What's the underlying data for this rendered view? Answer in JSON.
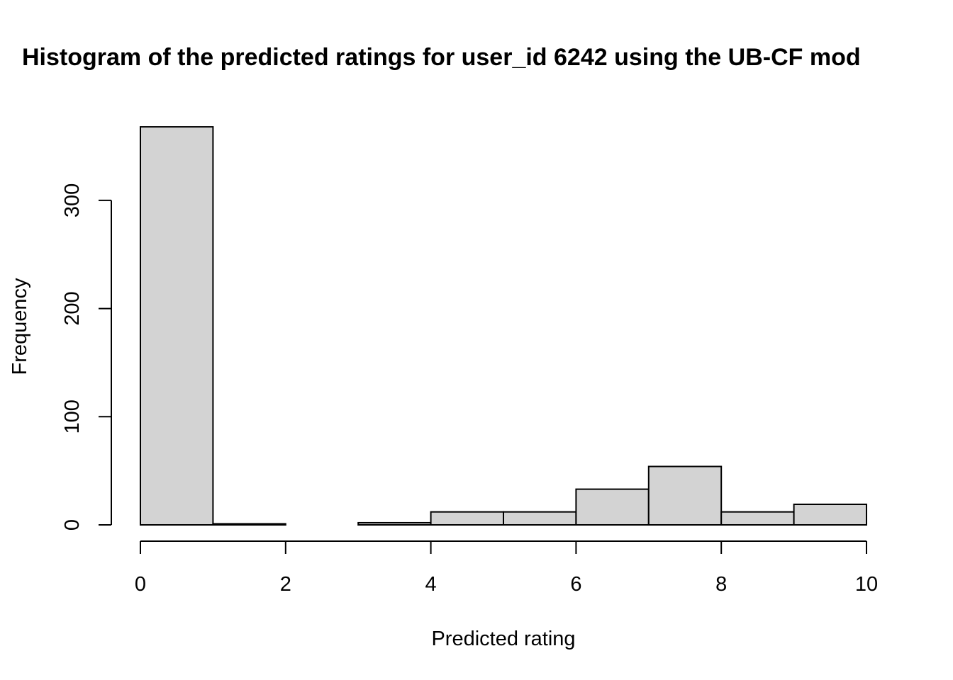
{
  "chart_data": {
    "type": "bar",
    "subtype": "histogram",
    "title": "Histogram of the predicted ratings for user_id 6242 using the UB-CF mod",
    "xlabel": "Predicted rating",
    "ylabel": "Frequency",
    "bins": [
      {
        "from": 0,
        "to": 1,
        "count": 368
      },
      {
        "from": 1,
        "to": 2,
        "count": 1
      },
      {
        "from": 2,
        "to": 3,
        "count": 0
      },
      {
        "from": 3,
        "to": 4,
        "count": 2
      },
      {
        "from": 4,
        "to": 5,
        "count": 12
      },
      {
        "from": 5,
        "to": 6,
        "count": 12
      },
      {
        "from": 6,
        "to": 7,
        "count": 33
      },
      {
        "from": 7,
        "to": 8,
        "count": 54
      },
      {
        "from": 8,
        "to": 9,
        "count": 12
      },
      {
        "from": 9,
        "to": 10,
        "count": 19
      }
    ],
    "xlim": [
      0,
      10
    ],
    "ylim": [
      0,
      368
    ],
    "x_ticks": [
      "0",
      "2",
      "4",
      "6",
      "8",
      "10"
    ],
    "y_ticks": [
      "0",
      "100",
      "200",
      "300"
    ],
    "bar_color": "#d3d3d3",
    "grid": false,
    "legend": "none"
  }
}
